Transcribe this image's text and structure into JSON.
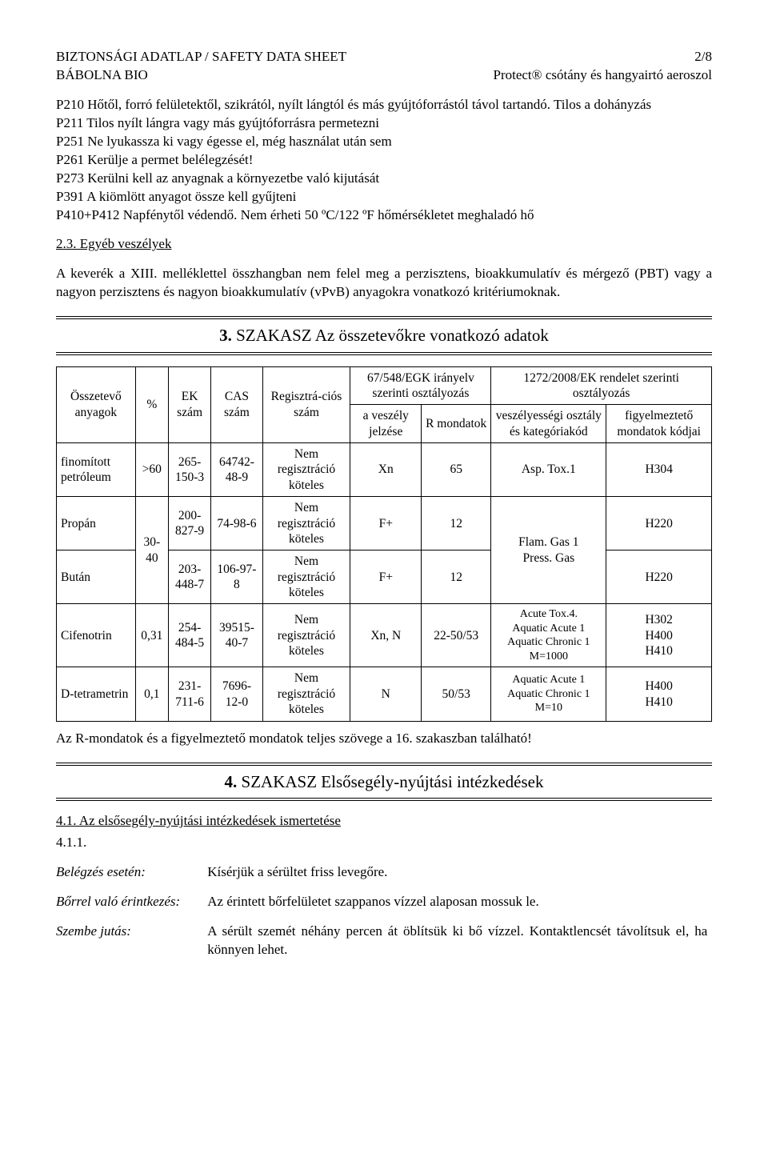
{
  "header": {
    "left1": "BIZTONSÁGI ADATLAP / SAFETY DATA SHEET",
    "left2": "BÁBOLNA BIO",
    "right1": "2/8",
    "right2": "Protect® csótány és hangyairtó aeroszol"
  },
  "p_block": {
    "lines": [
      "P210 Hőtől, forró felületektől, szikrától, nyílt lángtól és más gyújtóforrástól távol tartandó. Tilos a dohányzás",
      "P211 Tilos nyílt lángra vagy más gyújtóforrásra permetezni",
      "P251 Ne lyukassza ki vagy égesse el, még használat után sem",
      "P261 Kerülje a permet belélegzését!",
      "P273 Kerülni kell az anyagnak a környezetbe való kijutását",
      "P391 A kiömlött anyagot össze kell gyűjteni",
      "P410+P412 Napfénytől védendő. Nem érheti 50 ºC/122 ºF hőmérsékletet meghaladó hő"
    ]
  },
  "s23": {
    "title": "2.3. Egyéb veszélyek",
    "body": "A keverék a XIII. melléklettel összhangban nem felel meg a perzisztens, bioakkumulatív és mérgező (PBT) vagy a nagyon perzisztens és nagyon bioakkumulatív (vPvB) anyagokra vonatkozó kritériumoknak."
  },
  "section3": {
    "num": "3.",
    "title": " SZAKASZ Az összetevőkre vonatkozó adatok"
  },
  "table": {
    "headers": {
      "c1": "Összetevő anyagok",
      "c2": "%",
      "c3": "EK szám",
      "c4": "CAS szám",
      "c5": "Regisztrá-ciós szám",
      "c6": "67/548/EGK irányelv szerinti osztályozás",
      "c6a": "a veszély jelzése",
      "c6b": "R mondatok",
      "c7": "1272/2008/EK rendelet szerinti osztályozás",
      "c7a": "veszélyességi osztály és kategóriakód",
      "c7b": "figyelmeztető mondatok kódjai"
    },
    "rows": [
      {
        "name": "finomított petróleum",
        "pct": ">60",
        "ek": "265-150-3",
        "cas": "64742-48-9",
        "reg": "Nem regisztráció köteles",
        "haz": "Xn",
        "r": "65",
        "cls": "Asp. Tox.1",
        "h": "H304"
      },
      {
        "name": "Propán",
        "pct": "30-40",
        "ek": "200-827-9",
        "cas": "74-98-6",
        "reg": "Nem regisztráció köteles",
        "haz": "F+",
        "r": "12",
        "cls": "Flam. Gas 1\nPress. Gas",
        "h": "H220"
      },
      {
        "name": "Bután",
        "pct": "",
        "ek": "203-448-7",
        "cas": "106-97-8",
        "reg": "Nem regisztráció köteles",
        "haz": "F+",
        "r": "12",
        "cls": "",
        "h": "H220"
      },
      {
        "name": "Cifenotrin",
        "pct": "0,31",
        "ek": "254-484-5",
        "cas": "39515-40-7",
        "reg": "Nem regisztráció köteles",
        "haz": "Xn, N",
        "r": "22-50/53",
        "cls": "Acute Tox.4.\nAquatic Acute 1\nAquatic Chronic 1\nM=1000",
        "h": "H302\nH400\nH410"
      },
      {
        "name": "D-tetrametrin",
        "pct": "0,1",
        "ek": "231-711-6",
        "cas": "7696-12-0",
        "reg": "Nem regisztráció köteles",
        "haz": "N",
        "r": "50/53",
        "cls": "Aquatic Acute 1\nAquatic Chronic 1\nM=10",
        "h": "H400\nH410"
      }
    ],
    "footnote": "Az R-mondatok és a figyelmeztető mondatok teljes szövege a 16. szakaszban található!"
  },
  "section4": {
    "num": "4.",
    "title": " SZAKASZ Elsősegély-nyújtási intézkedések"
  },
  "s41": {
    "title": "4.1. Az elsősegély-nyújtási intézkedések ismertetése",
    "sub": "4.1.1.",
    "rows": [
      {
        "label": "Belégzés esetén:",
        "text": "Kísérjük a sérültet friss levegőre."
      },
      {
        "label": "Bőrrel való érintkezés:",
        "text": "Az érintett bőrfelületet szappanos vízzel alaposan mossuk le."
      },
      {
        "label": "Szembe jutás:",
        "text": "A sérült szemét néhány percen át öblítsük ki bő vízzel. Kontaktlencsét távolítsuk el, ha könnyen lehet."
      }
    ]
  }
}
